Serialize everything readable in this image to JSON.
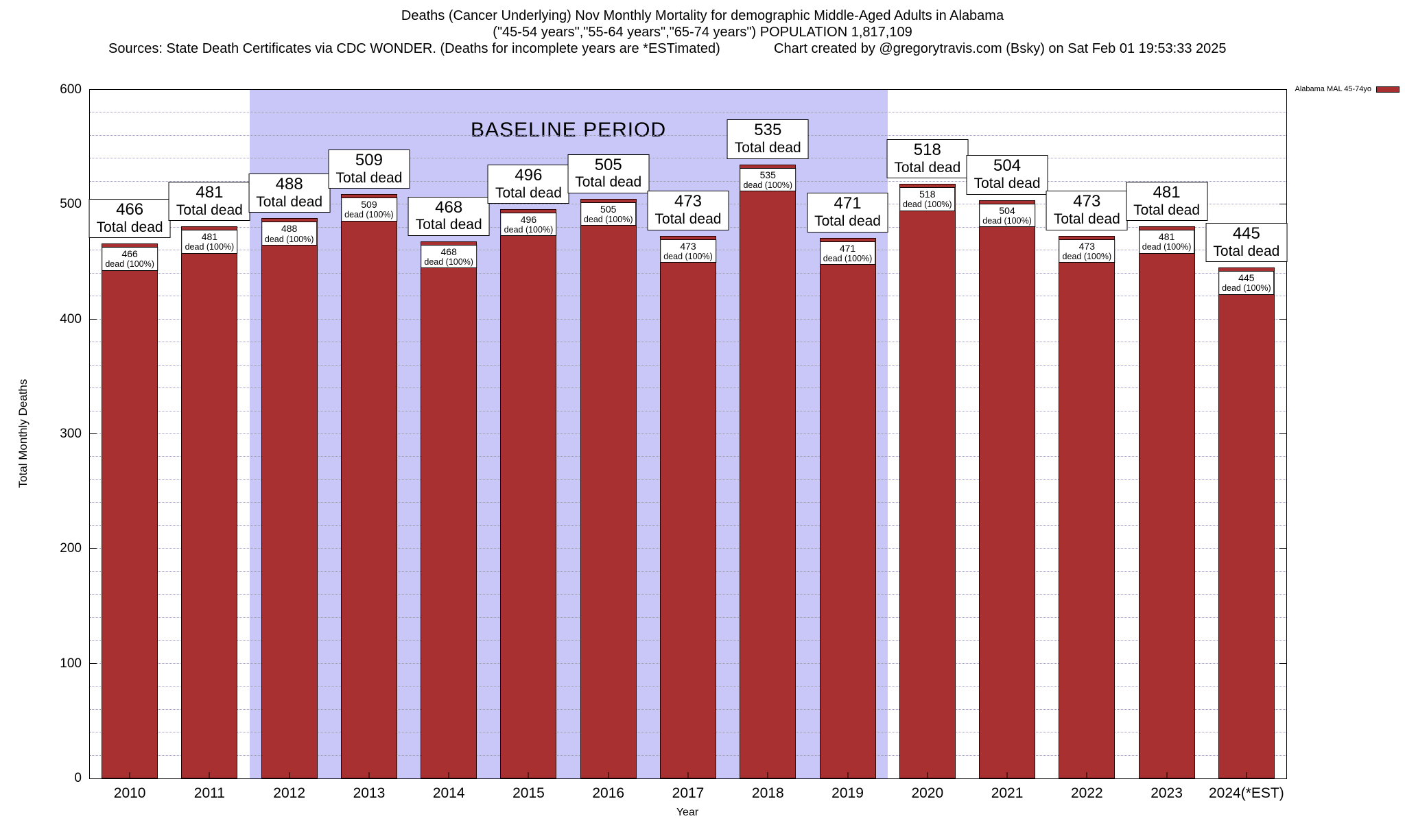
{
  "header": {
    "title_line1": "Deaths (Cancer Underlying) Nov Monthly Mortality for demographic Middle-Aged Adults in Alabama",
    "title_line2": "(\"45-54 years\",\"55-64 years\",\"65-74 years\") POPULATION 1,817,109",
    "sources": "Sources: State Death Certificates via CDC WONDER. (Deaths for incomplete years are *ESTimated)",
    "credit": "Chart created by @gregorytravis.com (Bsky) on Sat Feb 01 19:53:33 2025"
  },
  "chart_data": {
    "type": "bar",
    "title": "Deaths (Cancer Underlying) Nov Monthly Mortality for demographic Middle-Aged Adults in Alabama",
    "subtitle": "(\"45-54 years\",\"55-64 years\",\"65-74 years\") POPULATION 1,817,109",
    "xlabel": "Year",
    "ylabel": "Total Monthly Deaths",
    "ylim": [
      0,
      600
    ],
    "yticks": [
      0,
      100,
      200,
      300,
      400,
      500,
      600
    ],
    "grid": "dotted-horizontal",
    "categories": [
      "2010",
      "2011",
      "2012",
      "2013",
      "2014",
      "2015",
      "2016",
      "2017",
      "2018",
      "2019",
      "2020",
      "2021",
      "2022",
      "2023",
      "2024(*EST)"
    ],
    "values": [
      466,
      481,
      488,
      509,
      468,
      496,
      505,
      473,
      535,
      471,
      518,
      504,
      473,
      481,
      445
    ],
    "bar_label_suffix": "Total dead",
    "inner_label_suffix": "dead (100%)",
    "bar_color": "#a93030",
    "baseline": {
      "label": "BASELINE PERIOD",
      "start_index": 2,
      "end_index": 9,
      "start_category": "2012",
      "end_category": "2019",
      "color": "#c8c7f8"
    },
    "legend": {
      "label": "Alabama MAL 45-74yo",
      "color": "#a93030",
      "position": "top-right-outside"
    }
  }
}
